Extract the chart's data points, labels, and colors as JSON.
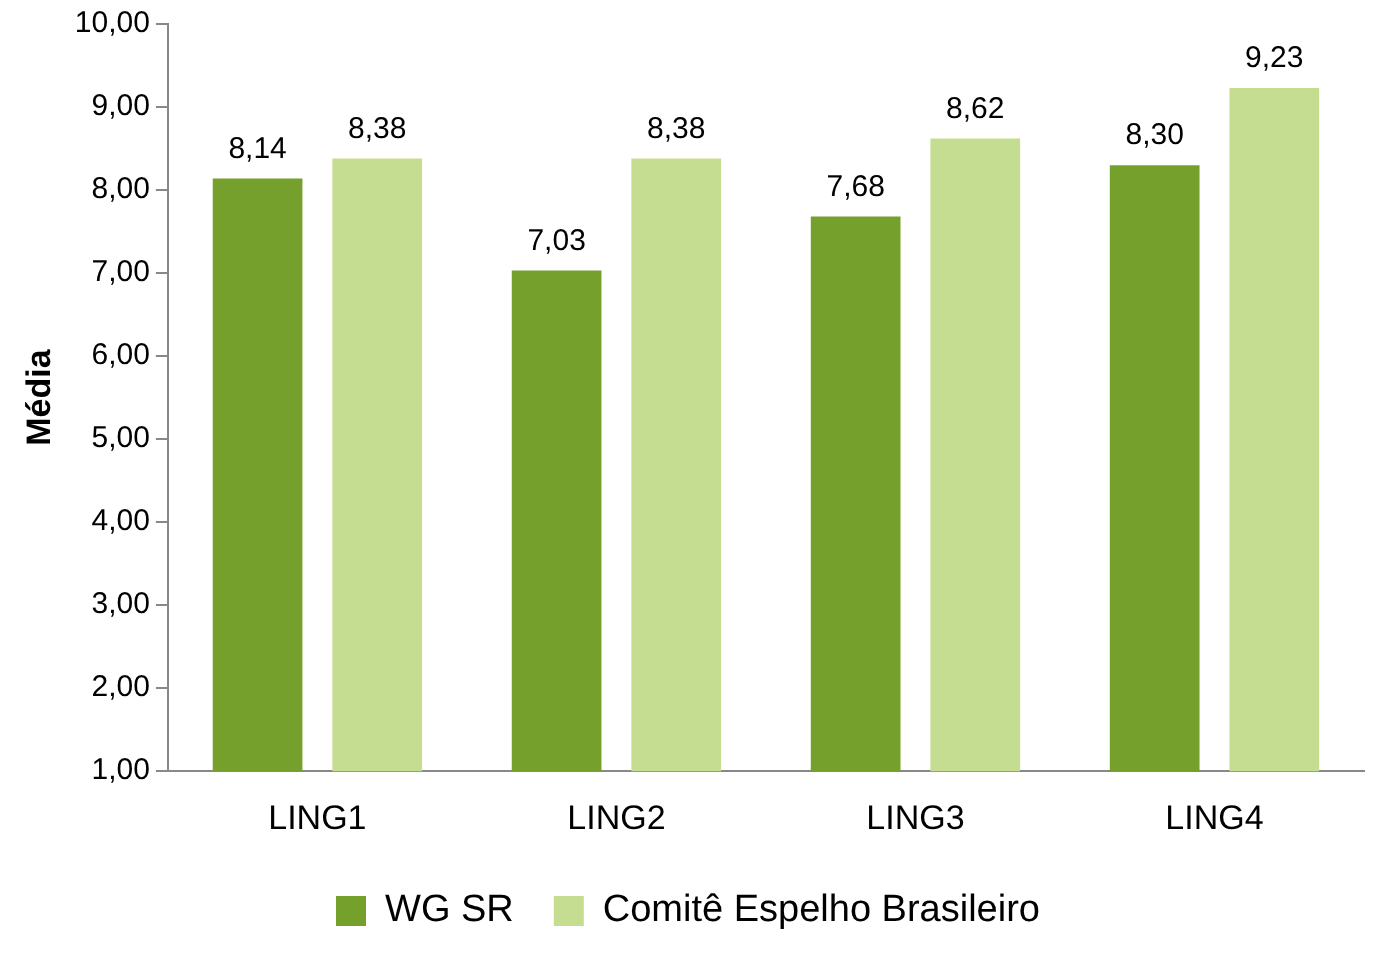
{
  "chart_data": {
    "type": "bar",
    "ylabel": "Média",
    "categories": [
      "LING1",
      "LING2",
      "LING3",
      "LING4"
    ],
    "series": [
      {
        "name": "WG SR",
        "color": "#76a02c",
        "values": [
          8.14,
          7.03,
          7.68,
          8.3
        ],
        "value_labels": [
          "8,14",
          "7,03",
          "7,68",
          "8,30"
        ]
      },
      {
        "name": "Comitê Espelho Brasileiro",
        "color": "#c4dd90",
        "values": [
          8.38,
          8.38,
          8.62,
          9.23
        ],
        "value_labels": [
          "8,38",
          "8,38",
          "8,62",
          "9,23"
        ]
      }
    ],
    "ylim": [
      1,
      10
    ],
    "yticks": [
      {
        "value": 1,
        "label": "1,00"
      },
      {
        "value": 2,
        "label": "2,00"
      },
      {
        "value": 3,
        "label": "3,00"
      },
      {
        "value": 4,
        "label": "4,00"
      },
      {
        "value": 5,
        "label": "5,00"
      },
      {
        "value": 6,
        "label": "6,00"
      },
      {
        "value": 7,
        "label": "7,00"
      },
      {
        "value": 8,
        "label": "8,00"
      },
      {
        "value": 9,
        "label": "9,00"
      },
      {
        "value": 10,
        "label": "10,00"
      }
    ],
    "grid": false,
    "legend": "bottom"
  }
}
